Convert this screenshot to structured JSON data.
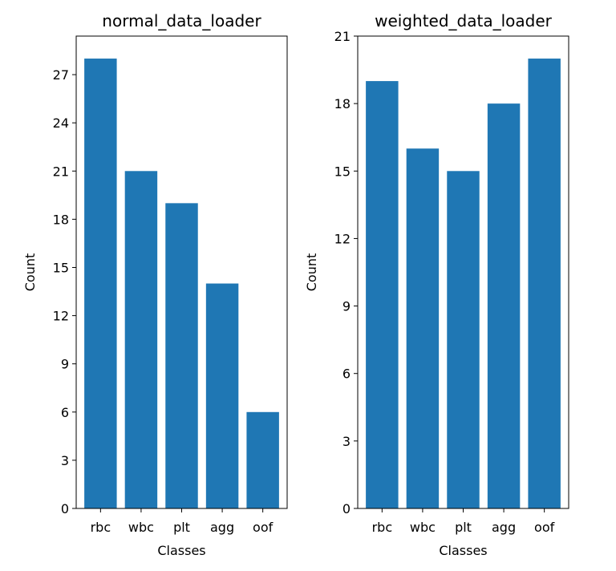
{
  "chart_data": [
    {
      "type": "bar",
      "title": "normal_data_loader",
      "xlabel": "Classes",
      "ylabel": "Count",
      "categories": [
        "rbc",
        "wbc",
        "plt",
        "agg",
        "oof"
      ],
      "values": [
        28,
        21,
        19,
        14,
        6
      ],
      "yticks": [
        0,
        3,
        6,
        9,
        12,
        15,
        18,
        21,
        24,
        27
      ],
      "ylim": [
        0,
        29.4
      ],
      "bar_color": "#1f77b4",
      "grid": false
    },
    {
      "type": "bar",
      "title": "weighted_data_loader",
      "xlabel": "Classes",
      "ylabel": "Count",
      "categories": [
        "rbc",
        "wbc",
        "plt",
        "agg",
        "oof"
      ],
      "values": [
        19,
        16,
        15,
        18,
        20
      ],
      "yticks": [
        0,
        3,
        6,
        9,
        12,
        15,
        18,
        21
      ],
      "ylim": [
        0,
        21
      ],
      "bar_color": "#1f77b4",
      "grid": false
    }
  ]
}
